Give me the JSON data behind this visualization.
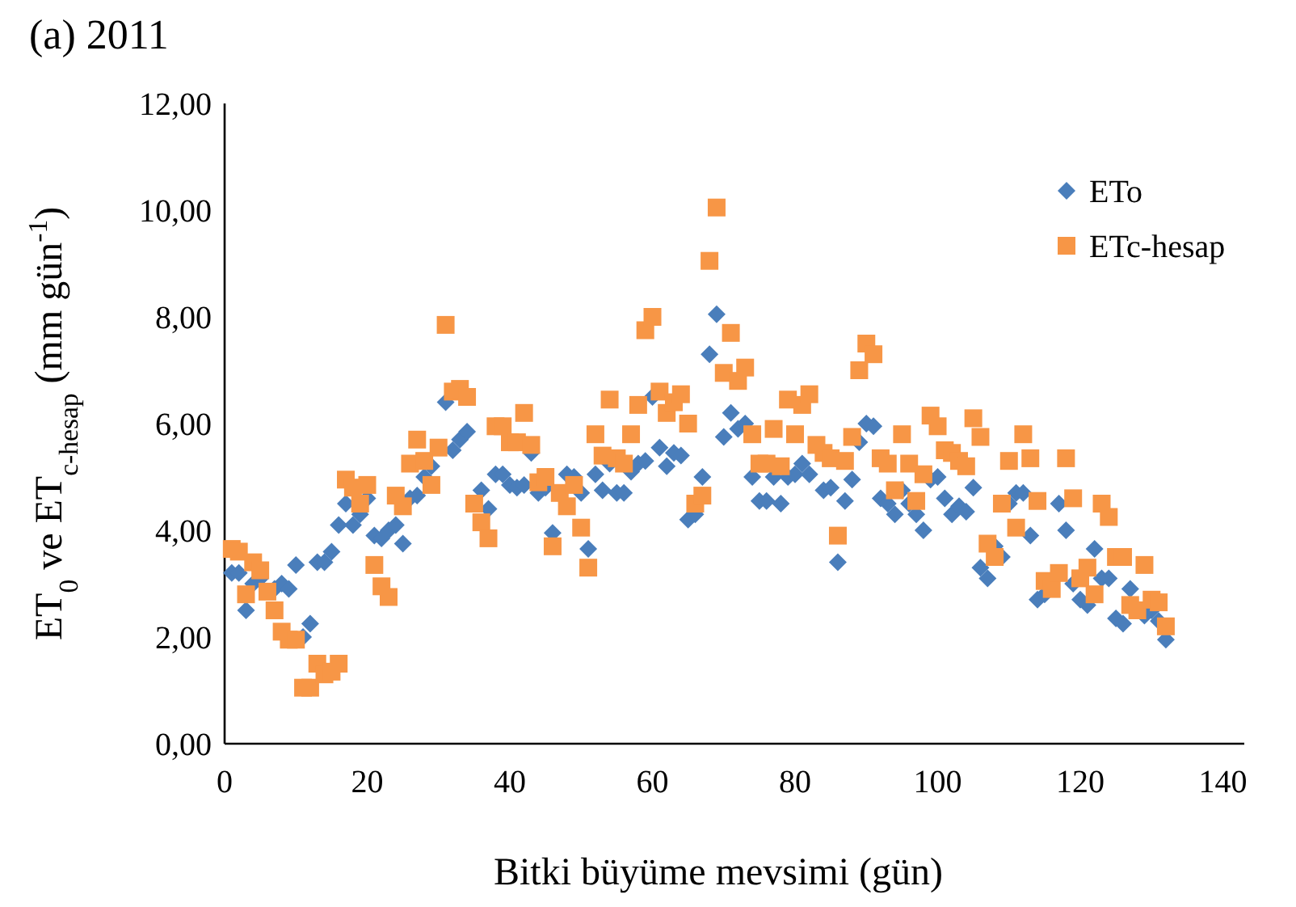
{
  "chart_data": {
    "type": "scatter",
    "title": "(a)   2011",
    "xlabel": "Bitki büyüme mevsimi (gün)",
    "ylabel": "ET$_{0}$ ve ET$_{c-hesap}$ (mm gün$^{-1}$)",
    "x": [
      1,
      2,
      3,
      4,
      5,
      6,
      7,
      8,
      9,
      10,
      11,
      12,
      13,
      14,
      15,
      16,
      17,
      18,
      19,
      20,
      21,
      22,
      23,
      24,
      25,
      26,
      27,
      28,
      29,
      30,
      31,
      32,
      33,
      34,
      35,
      36,
      37,
      38,
      39,
      40,
      41,
      42,
      43,
      44,
      45,
      46,
      47,
      48,
      49,
      50,
      51,
      52,
      53,
      54,
      55,
      56,
      57,
      58,
      59,
      60,
      61,
      62,
      63,
      64,
      65,
      66,
      67,
      68,
      69,
      70,
      71,
      72,
      73,
      74,
      75,
      76,
      77,
      78,
      79,
      80,
      81,
      82,
      83,
      84,
      85,
      86,
      87,
      88,
      89,
      90,
      91,
      92,
      93,
      94,
      95,
      96,
      97,
      98,
      99,
      100,
      101,
      102,
      103,
      104,
      105,
      106,
      107,
      108,
      109,
      110,
      111,
      112,
      113,
      114,
      115,
      116,
      117,
      118,
      119,
      120,
      121,
      122,
      123,
      124,
      125,
      126,
      127,
      128,
      129,
      130,
      131,
      132
    ],
    "series": [
      {
        "name": "ETo",
        "color": "#4a7ebb",
        "marker": "diamond",
        "values": [
          3.2,
          3.2,
          2.5,
          3.0,
          3.1,
          null,
          2.9,
          3.0,
          2.9,
          3.35,
          2.0,
          2.25,
          3.4,
          3.4,
          3.6,
          4.1,
          4.5,
          4.1,
          4.3,
          4.6,
          3.9,
          3.85,
          4.0,
          4.1,
          3.75,
          4.6,
          4.65,
          5.0,
          5.2,
          null,
          6.4,
          5.5,
          5.7,
          5.85,
          null,
          4.75,
          4.4,
          5.05,
          5.05,
          4.85,
          4.8,
          4.85,
          5.45,
          4.7,
          4.8,
          3.95,
          null,
          5.05,
          5.0,
          4.7,
          3.65,
          5.05,
          4.75,
          5.25,
          4.7,
          4.7,
          5.1,
          5.25,
          5.3,
          6.5,
          5.55,
          5.2,
          5.45,
          5.4,
          4.2,
          4.3,
          5.0,
          7.3,
          8.05,
          5.75,
          6.2,
          5.9,
          6.0,
          5.0,
          4.55,
          4.55,
          5.0,
          4.5,
          5.0,
          5.05,
          5.25,
          5.05,
          null,
          4.75,
          4.8,
          3.4,
          4.55,
          4.95,
          5.65,
          6.0,
          5.95,
          4.6,
          4.5,
          4.3,
          4.75,
          4.5,
          4.3,
          4.0,
          4.95,
          5.0,
          4.6,
          4.3,
          4.45,
          4.35,
          4.8,
          3.3,
          3.1,
          3.7,
          3.5,
          4.5,
          4.7,
          4.7,
          3.9,
          2.7,
          2.8,
          null,
          4.5,
          4.0,
          3.0,
          2.7,
          2.6,
          3.65,
          3.1,
          3.1,
          2.35,
          2.25,
          2.9,
          null,
          2.4,
          2.5,
          2.3,
          1.95
        ]
      },
      {
        "name": "ETc-hesap",
        "color": "#f79646",
        "marker": "square",
        "values": [
          3.65,
          3.6,
          2.8,
          3.4,
          3.25,
          2.85,
          2.5,
          2.1,
          1.95,
          1.95,
          1.05,
          1.05,
          1.5,
          1.3,
          1.35,
          1.5,
          4.95,
          4.8,
          4.5,
          4.85,
          3.35,
          2.95,
          2.75,
          4.65,
          4.45,
          5.25,
          5.7,
          5.3,
          4.85,
          5.55,
          7.85,
          6.6,
          6.65,
          6.5,
          4.5,
          4.15,
          3.85,
          5.95,
          5.95,
          5.65,
          5.65,
          6.2,
          5.6,
          4.9,
          5.0,
          3.7,
          4.7,
          4.45,
          4.85,
          4.05,
          3.3,
          5.8,
          5.4,
          6.45,
          5.35,
          5.25,
          5.8,
          6.35,
          7.75,
          8.0,
          6.6,
          6.2,
          6.4,
          6.55,
          6.0,
          4.5,
          4.65,
          9.05,
          10.05,
          6.95,
          7.7,
          6.8,
          7.05,
          5.8,
          5.25,
          5.25,
          5.9,
          5.2,
          6.45,
          5.8,
          6.35,
          6.55,
          5.6,
          5.45,
          5.35,
          3.9,
          5.3,
          5.75,
          7.0,
          7.5,
          7.3,
          5.35,
          5.25,
          4.75,
          5.8,
          5.25,
          4.55,
          5.05,
          6.15,
          5.95,
          5.5,
          5.45,
          5.3,
          5.2,
          6.1,
          5.75,
          3.75,
          3.5,
          4.5,
          5.3,
          4.05,
          5.8,
          5.35,
          4.55,
          3.05,
          2.9,
          3.2,
          5.35,
          4.6,
          3.1,
          3.3,
          2.8,
          4.5,
          4.25,
          3.5,
          3.5,
          2.6,
          2.5,
          3.35,
          2.7,
          2.65,
          2.2
        ]
      }
    ],
    "xlim": [
      0,
      143
    ],
    "xticks": [
      0,
      20,
      40,
      60,
      80,
      100,
      120,
      140
    ],
    "ylim": [
      0,
      12
    ],
    "yticks": [
      {
        "value": 0,
        "label": "0,00"
      },
      {
        "value": 2,
        "label": "2,00"
      },
      {
        "value": 4,
        "label": "4,00"
      },
      {
        "value": 6,
        "label": "6,00"
      },
      {
        "value": 8,
        "label": "8,00"
      },
      {
        "value": 10,
        "label": "10,00"
      },
      {
        "value": 12,
        "label": "12,00"
      }
    ],
    "grid": false,
    "legend": "top right"
  }
}
